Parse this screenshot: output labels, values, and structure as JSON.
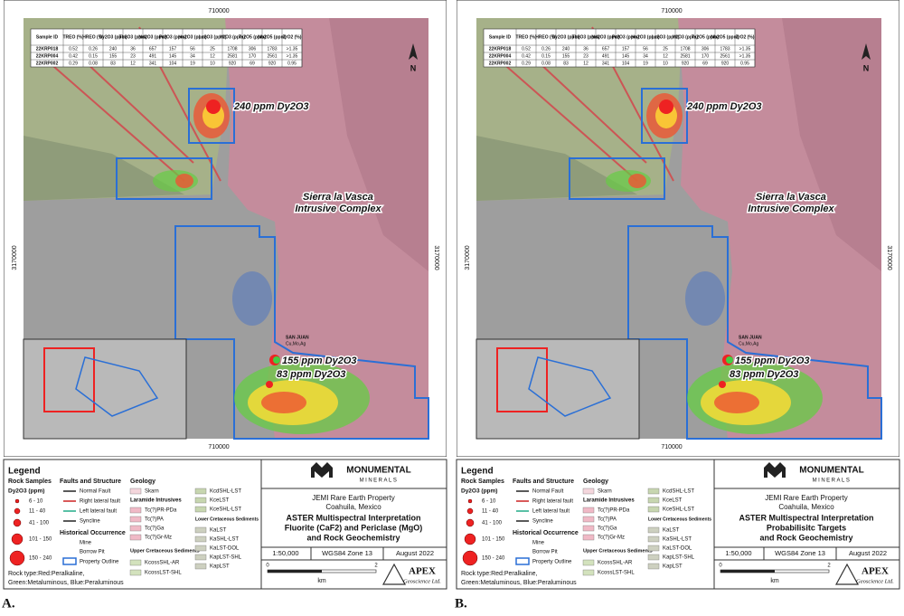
{
  "table": {
    "header": [
      "Sample ID",
      "TREO (%)",
      "HREO (%)",
      "Dy2O3 (ppm)",
      "Tb2O3 (ppm)",
      "Nd2O3 (ppm)",
      "Pr2O3 (ppm)",
      "Ho2O3 (ppm)",
      "Lu2O3 (ppm)",
      "Y2O3 (ppm)",
      "Ta2O5 (ppm)",
      "Nb2O5 (ppm)",
      "ZrO2 (%)"
    ],
    "rows": [
      [
        "22KRP018",
        "0.52",
        "0.26",
        "240",
        "36",
        "657",
        "157",
        "56",
        "25",
        "1708",
        "306",
        "1783",
        ">1.35"
      ],
      [
        "22KRP004",
        "0.42",
        "0.15",
        "155",
        "23",
        "491",
        "145",
        "34",
        "12",
        "2581",
        "170",
        "2561",
        ">1.35"
      ],
      [
        "22KRP002",
        "0.29",
        "0.08",
        "83",
        "12",
        "341",
        "104",
        "19",
        "10",
        "920",
        "69",
        "920",
        "0.95"
      ]
    ]
  },
  "map": {
    "grid_top": "710000",
    "grid_bottom": "710000",
    "grid_left": "3170000",
    "grid_right": "3170000",
    "north": "N",
    "intrusive": [
      "Sierra la Vasca",
      "Intrusive Complex"
    ],
    "locality": [
      "SAN JUAN",
      "Cu,Mo,Ag"
    ],
    "samples": [
      "240 ppm Dy2O3",
      "155 ppm Dy2O3",
      "83 ppm Dy2O3"
    ]
  },
  "legend": {
    "title": "Legend",
    "rock_samples": "Rock Samples",
    "dy_unit": "Dy2O3 (ppm)",
    "classes": [
      "6 - 10",
      "11 - 40",
      "41 - 100",
      "101 - 150",
      "150 - 240"
    ],
    "rock_type": [
      "Rock type:Red:Peralkaline,",
      "Green:Metaluminous, Blue:Peraluminous"
    ],
    "faults_title": "Faults and Structure",
    "faults": [
      "Normal Fault",
      "Right lateral fault",
      "Left lateral fault",
      "Syncline"
    ],
    "historical_title": "Historical Occurrence",
    "historical": [
      "Mine",
      "Borrow Pit"
    ],
    "property": "Property Outline",
    "geology_title": "Geology",
    "skarn": "Skarn",
    "laramide": "Laramide Intrusives",
    "laramide_units": [
      "Tc(?)PR-PDa",
      "Tc(?)PA",
      "Tc(?)Ga",
      "Tc(?)Gr-Mz"
    ],
    "upper": "Upper Cretaceous Sediments",
    "upper_units": [
      "KcossSHL-AR",
      "KcossLST-SHL",
      "KcdSHL-LST",
      "KceLST",
      "KceSHL-LST"
    ],
    "lower": "Lower Cretaceous Sediments",
    "lower_units": [
      "KaLST",
      "KaSHL-LST",
      "KaLST-DOL",
      "KapLST-SHL",
      "KapLST"
    ]
  },
  "title_block": {
    "company": "MONUMENTAL",
    "company_sub": "MINERALS",
    "property": "JEMI Rare Earth Property",
    "location": "Coahuila, Mexico",
    "scale": "1:50,000",
    "datum": "WGS84 Zone 13",
    "date": "August 2022",
    "bar_start": "0",
    "bar_end": "2",
    "bar_unit": "km",
    "consultant": "APEX",
    "consultant_sub": "Geoscience Ltd."
  },
  "panels": [
    {
      "label": "A.",
      "title": [
        "ASTER Multispectral Interpretation",
        "Fluorite (CaF2) and Periclase (MgO)",
        "and Rock Geochemistry"
      ]
    },
    {
      "label": "B.",
      "title": [
        "ASTER Multispectral Interpretation",
        "Probabilisitc Targets",
        "and Rock Geochemistry"
      ]
    }
  ]
}
